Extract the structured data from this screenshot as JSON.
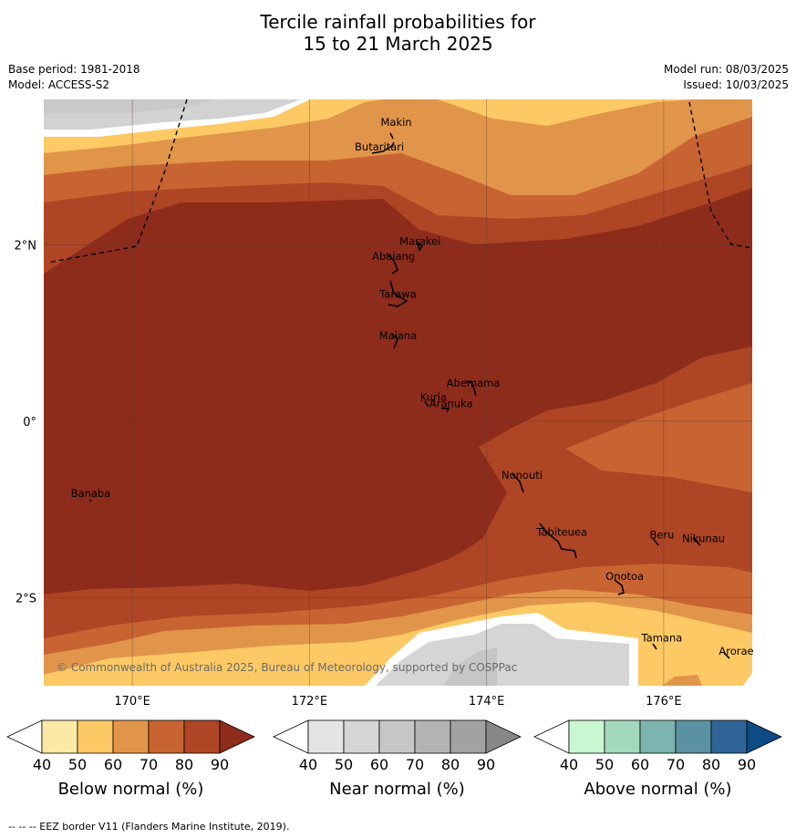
{
  "title_line1": "Tercile rainfall probabilities for",
  "title_line2": "15 to 21 March 2025",
  "base_period": "Base period: 1981-2018",
  "model": "Model: ACCESS-S2",
  "model_run": "Model run: 08/03/2025",
  "issued": "Issued: 10/03/2025",
  "map": {
    "lon_range": [
      169.0,
      177.0
    ],
    "lat_range": [
      -3.0,
      3.65
    ],
    "lat_ticks": [
      {
        "lat": 2,
        "label": "2°N"
      },
      {
        "lat": 0,
        "label": "0°"
      },
      {
        "lat": -2,
        "label": "2°S"
      }
    ],
    "lon_ticks": [
      {
        "lon": 170,
        "label": "170°E"
      },
      {
        "lon": 172,
        "label": "172°E"
      },
      {
        "lon": 174,
        "label": "174°E"
      },
      {
        "lon": 176,
        "label": "176°E"
      }
    ],
    "places": [
      {
        "name": "Makin",
        "lon": 172.98,
        "lat": 3.35
      },
      {
        "name": "Butaritari",
        "lon": 172.79,
        "lat": 3.07
      },
      {
        "name": "Marakei",
        "lon": 173.25,
        "lat": 2.0
      },
      {
        "name": "Abaiang",
        "lon": 172.95,
        "lat": 1.83
      },
      {
        "name": "Tarawa",
        "lon": 173.0,
        "lat": 1.4
      },
      {
        "name": "Maiana",
        "lon": 173.0,
        "lat": 0.93
      },
      {
        "name": "Abemama",
        "lon": 173.85,
        "lat": 0.39
      },
      {
        "name": "Kuria",
        "lon": 173.4,
        "lat": 0.23
      },
      {
        "name": "Aranuka",
        "lon": 173.6,
        "lat": 0.16
      },
      {
        "name": "Nonouti",
        "lon": 174.4,
        "lat": -0.65
      },
      {
        "name": "Banaba",
        "lon": 169.53,
        "lat": -0.86
      },
      {
        "name": "Tabiteuea",
        "lon": 174.85,
        "lat": -1.3
      },
      {
        "name": "Beru",
        "lon": 175.98,
        "lat": -1.33
      },
      {
        "name": "Nikunau",
        "lon": 176.45,
        "lat": -1.37
      },
      {
        "name": "Onotoa",
        "lon": 175.56,
        "lat": -1.8
      },
      {
        "name": "Tamana",
        "lon": 175.98,
        "lat": -2.5
      },
      {
        "name": "Arorae",
        "lon": 176.82,
        "lat": -2.65
      }
    ],
    "copyright": "© Commonwealth of Australia 2025, Bureau of Meteorology, supported by COSPPac"
  },
  "colorbars": [
    {
      "title": "Below normal (%)",
      "ticks": [
        "40",
        "50",
        "60",
        "70",
        "80",
        "90"
      ],
      "colors": [
        "#ffffff",
        "#fde9a6",
        "#fdc965",
        "#e1954a",
        "#c86332",
        "#ae4524",
        "#8e2c1c"
      ]
    },
    {
      "title": "Near normal (%)",
      "ticks": [
        "40",
        "50",
        "60",
        "70",
        "80",
        "90"
      ],
      "colors": [
        "#ffffff",
        "#e4e4e4",
        "#d5d5d5",
        "#c6c6c6",
        "#b4b4b4",
        "#a2a2a2",
        "#878787"
      ]
    },
    {
      "title": "Above normal (%)",
      "ticks": [
        "40",
        "50",
        "60",
        "70",
        "80",
        "90"
      ],
      "colors": [
        "#ffffff",
        "#c9f7d2",
        "#a4d8bd",
        "#7cb4af",
        "#5b92a2",
        "#2f6496",
        "#0e4a83"
      ]
    }
  ],
  "footer": "-- -- -- EEZ border V11 (Flanders Marine Institute, 2019)."
}
